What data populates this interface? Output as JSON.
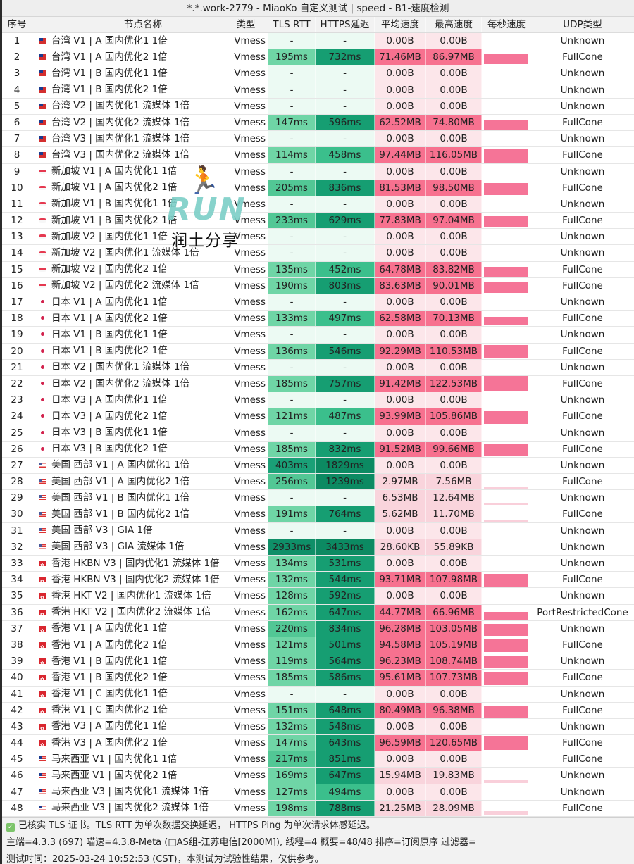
{
  "window": {
    "title": "*.*.work-2779 - MiaoKo 自定义测试 | speed - B1-速度检测"
  },
  "table": {
    "headers": {
      "idx": "序号",
      "name": "节点名称",
      "type": "类型",
      "tls": "TLS RTT",
      "https": "HTTPS延迟",
      "avg": "平均速度",
      "max": "最高速度",
      "persec": "每秒速度",
      "udp": "UDP类型"
    },
    "rows": [
      {
        "idx": "1",
        "flag": "tw",
        "name": "台湾 V1 | A 国内优化1 1倍",
        "type": "Vmess",
        "tls": "-",
        "https": "-",
        "avg": "0.00B",
        "max": "0.00B",
        "udp": "Unknown"
      },
      {
        "idx": "2",
        "flag": "tw",
        "name": "台湾 V1 | A 国内优化2 1倍",
        "type": "Vmess",
        "tls": "195ms",
        "https": "732ms",
        "avg": "71.46MB",
        "max": "86.97MB",
        "udp": "FullCone"
      },
      {
        "idx": "3",
        "flag": "tw",
        "name": "台湾 V1 | B 国内优化1 1倍",
        "type": "Vmess",
        "tls": "-",
        "https": "-",
        "avg": "0.00B",
        "max": "0.00B",
        "udp": "Unknown"
      },
      {
        "idx": "4",
        "flag": "tw",
        "name": "台湾 V1 | B 国内优化2 1倍",
        "type": "Vmess",
        "tls": "-",
        "https": "-",
        "avg": "0.00B",
        "max": "0.00B",
        "udp": "Unknown"
      },
      {
        "idx": "5",
        "flag": "tw",
        "name": "台湾 V2 | 国内优化1 流媒体 1倍",
        "type": "Vmess",
        "tls": "-",
        "https": "-",
        "avg": "0.00B",
        "max": "0.00B",
        "udp": "Unknown"
      },
      {
        "idx": "6",
        "flag": "tw",
        "name": "台湾 V2 | 国内优化2 流媒体 1倍",
        "type": "Vmess",
        "tls": "147ms",
        "https": "596ms",
        "avg": "62.52MB",
        "max": "74.80MB",
        "udp": "FullCone"
      },
      {
        "idx": "7",
        "flag": "tw",
        "name": "台湾 V3 | 国内优化1 流媒体 1倍",
        "type": "Vmess",
        "tls": "-",
        "https": "-",
        "avg": "0.00B",
        "max": "0.00B",
        "udp": "Unknown"
      },
      {
        "idx": "8",
        "flag": "tw",
        "name": "台湾 V3 | 国内优化2 流媒体 1倍",
        "type": "Vmess",
        "tls": "114ms",
        "https": "458ms",
        "avg": "97.44MB",
        "max": "116.05MB",
        "udp": "FullCone"
      },
      {
        "idx": "9",
        "flag": "sg",
        "name": "新加坡 V1 | A 国内优化1 1倍",
        "type": "Vmess",
        "tls": "-",
        "https": "-",
        "avg": "0.00B",
        "max": "0.00B",
        "udp": "Unknown"
      },
      {
        "idx": "10",
        "flag": "sg",
        "name": "新加坡 V1 | A 国内优化2 1倍",
        "type": "Vmess",
        "tls": "205ms",
        "https": "836ms",
        "avg": "81.53MB",
        "max": "98.50MB",
        "udp": "FullCone"
      },
      {
        "idx": "11",
        "flag": "sg",
        "name": "新加坡 V1 | B 国内优化1 1倍",
        "type": "Vmess",
        "tls": "-",
        "https": "-",
        "avg": "0.00B",
        "max": "0.00B",
        "udp": "Unknown"
      },
      {
        "idx": "12",
        "flag": "sg",
        "name": "新加坡 V1 | B 国内优化2 1倍",
        "type": "Vmess",
        "tls": "233ms",
        "https": "629ms",
        "avg": "77.83MB",
        "max": "97.04MB",
        "udp": "FullCone"
      },
      {
        "idx": "13",
        "flag": "sg",
        "name": "新加坡 V2 | 国内优化1 1倍",
        "type": "Vmess",
        "tls": "-",
        "https": "-",
        "avg": "0.00B",
        "max": "0.00B",
        "udp": "Unknown"
      },
      {
        "idx": "14",
        "flag": "sg",
        "name": "新加坡 V2 | 国内优化1 流媒体 1倍",
        "type": "Vmess",
        "tls": "-",
        "https": "-",
        "avg": "0.00B",
        "max": "0.00B",
        "udp": "Unknown"
      },
      {
        "idx": "15",
        "flag": "sg",
        "name": "新加坡 V2 | 国内优化2 1倍",
        "type": "Vmess",
        "tls": "135ms",
        "https": "452ms",
        "avg": "64.78MB",
        "max": "83.82MB",
        "udp": "FullCone"
      },
      {
        "idx": "16",
        "flag": "sg",
        "name": "新加坡 V2 | 国内优化2 流媒体 1倍",
        "type": "Vmess",
        "tls": "190ms",
        "https": "803ms",
        "avg": "83.63MB",
        "max": "90.01MB",
        "udp": "FullCone"
      },
      {
        "idx": "17",
        "flag": "jp",
        "name": "日本 V1 | A 国内优化1 1倍",
        "type": "Vmess",
        "tls": "-",
        "https": "-",
        "avg": "0.00B",
        "max": "0.00B",
        "udp": "Unknown"
      },
      {
        "idx": "18",
        "flag": "jp",
        "name": "日本 V1 | A 国内优化2 1倍",
        "type": "Vmess",
        "tls": "133ms",
        "https": "497ms",
        "avg": "62.58MB",
        "max": "70.13MB",
        "udp": "FullCone"
      },
      {
        "idx": "19",
        "flag": "jp",
        "name": "日本 V1 | B 国内优化1 1倍",
        "type": "Vmess",
        "tls": "-",
        "https": "-",
        "avg": "0.00B",
        "max": "0.00B",
        "udp": "Unknown"
      },
      {
        "idx": "20",
        "flag": "jp",
        "name": "日本 V1 | B 国内优化2 1倍",
        "type": "Vmess",
        "tls": "136ms",
        "https": "546ms",
        "avg": "92.29MB",
        "max": "110.53MB",
        "udp": "FullCone"
      },
      {
        "idx": "21",
        "flag": "jp",
        "name": "日本 V2 | 国内优化1 流媒体 1倍",
        "type": "Vmess",
        "tls": "-",
        "https": "-",
        "avg": "0.00B",
        "max": "0.00B",
        "udp": "Unknown"
      },
      {
        "idx": "22",
        "flag": "jp",
        "name": "日本 V2 | 国内优化2 流媒体 1倍",
        "type": "Vmess",
        "tls": "185ms",
        "https": "757ms",
        "avg": "91.42MB",
        "max": "122.53MB",
        "udp": "FullCone"
      },
      {
        "idx": "23",
        "flag": "jp",
        "name": "日本 V3 | A 国内优化1 1倍",
        "type": "Vmess",
        "tls": "-",
        "https": "-",
        "avg": "0.00B",
        "max": "0.00B",
        "udp": "Unknown"
      },
      {
        "idx": "24",
        "flag": "jp",
        "name": "日本 V3 | A 国内优化2 1倍",
        "type": "Vmess",
        "tls": "121ms",
        "https": "487ms",
        "avg": "93.99MB",
        "max": "105.86MB",
        "udp": "FullCone"
      },
      {
        "idx": "25",
        "flag": "jp",
        "name": "日本 V3 | B 国内优化1 1倍",
        "type": "Vmess",
        "tls": "-",
        "https": "-",
        "avg": "0.00B",
        "max": "0.00B",
        "udp": "Unknown"
      },
      {
        "idx": "26",
        "flag": "jp",
        "name": "日本 V3 | B 国内优化2 1倍",
        "type": "Vmess",
        "tls": "185ms",
        "https": "832ms",
        "avg": "91.52MB",
        "max": "99.66MB",
        "udp": "FullCone"
      },
      {
        "idx": "27",
        "flag": "us",
        "name": "美国 西部 V1 | A 国内优化1 1倍",
        "type": "Vmess",
        "tls": "403ms",
        "https": "1829ms",
        "avg": "0.00B",
        "max": "0.00B",
        "udp": "Unknown"
      },
      {
        "idx": "28",
        "flag": "us",
        "name": "美国 西部 V1 | A 国内优化2 1倍",
        "type": "Vmess",
        "tls": "256ms",
        "https": "1239ms",
        "avg": "2.97MB",
        "max": "7.56MB",
        "udp": "FullCone"
      },
      {
        "idx": "29",
        "flag": "us",
        "name": "美国 西部 V1 | B 国内优化1 1倍",
        "type": "Vmess",
        "tls": "-",
        "https": "-",
        "avg": "6.53MB",
        "max": "12.64MB",
        "udp": "Unknown"
      },
      {
        "idx": "30",
        "flag": "us",
        "name": "美国 西部 V1 | B 国内优化2 1倍",
        "type": "Vmess",
        "tls": "191ms",
        "https": "764ms",
        "avg": "5.62MB",
        "max": "11.70MB",
        "udp": "FullCone"
      },
      {
        "idx": "31",
        "flag": "us",
        "name": "美国 西部 V3 | GIA 1倍",
        "type": "Vmess",
        "tls": "-",
        "https": "-",
        "avg": "0.00B",
        "max": "0.00B",
        "udp": "Unknown"
      },
      {
        "idx": "32",
        "flag": "us",
        "name": "美国 西部 V3 | GIA 流媒体 1倍",
        "type": "Vmess",
        "tls": "2933ms",
        "https": "3433ms",
        "avg": "28.60KB",
        "max": "55.89KB",
        "udp": "Unknown"
      },
      {
        "idx": "33",
        "flag": "hk",
        "name": "香港 HKBN V3 | 国内优化1 流媒体 1倍",
        "type": "Vmess",
        "tls": "134ms",
        "https": "531ms",
        "avg": "0.00B",
        "max": "0.00B",
        "udp": "Unknown"
      },
      {
        "idx": "34",
        "flag": "hk",
        "name": "香港 HKBN V3 | 国内优化2 流媒体 1倍",
        "type": "Vmess",
        "tls": "132ms",
        "https": "544ms",
        "avg": "93.71MB",
        "max": "107.98MB",
        "udp": "FullCone"
      },
      {
        "idx": "35",
        "flag": "hk",
        "name": "香港 HKT V2 | 国内优化1 流媒体 1倍",
        "type": "Vmess",
        "tls": "128ms",
        "https": "592ms",
        "avg": "0.00B",
        "max": "0.00B",
        "udp": "Unknown"
      },
      {
        "idx": "36",
        "flag": "hk",
        "name": "香港 HKT V2 | 国内优化2 流媒体 1倍",
        "type": "Vmess",
        "tls": "162ms",
        "https": "647ms",
        "avg": "44.77MB",
        "max": "66.96MB",
        "udp": "PortRestrictedCone"
      },
      {
        "idx": "37",
        "flag": "hk",
        "name": "香港 V1 | A 国内优化1 1倍",
        "type": "Vmess",
        "tls": "220ms",
        "https": "834ms",
        "avg": "96.28MB",
        "max": "103.05MB",
        "udp": "Unknown"
      },
      {
        "idx": "38",
        "flag": "hk",
        "name": "香港 V1 | A 国内优化2 1倍",
        "type": "Vmess",
        "tls": "121ms",
        "https": "501ms",
        "avg": "94.58MB",
        "max": "105.19MB",
        "udp": "FullCone"
      },
      {
        "idx": "39",
        "flag": "hk",
        "name": "香港 V1 | B 国内优化1 1倍",
        "type": "Vmess",
        "tls": "119ms",
        "https": "564ms",
        "avg": "96.23MB",
        "max": "108.74MB",
        "udp": "Unknown"
      },
      {
        "idx": "40",
        "flag": "hk",
        "name": "香港 V1 | B 国内优化2 1倍",
        "type": "Vmess",
        "tls": "185ms",
        "https": "586ms",
        "avg": "95.61MB",
        "max": "107.73MB",
        "udp": "FullCone"
      },
      {
        "idx": "41",
        "flag": "hk",
        "name": "香港 V1 | C 国内优化1 1倍",
        "type": "Vmess",
        "tls": "-",
        "https": "-",
        "avg": "0.00B",
        "max": "0.00B",
        "udp": "Unknown"
      },
      {
        "idx": "42",
        "flag": "hk",
        "name": "香港 V1 | C 国内优化2 1倍",
        "type": "Vmess",
        "tls": "151ms",
        "https": "648ms",
        "avg": "80.49MB",
        "max": "96.38MB",
        "udp": "FullCone"
      },
      {
        "idx": "43",
        "flag": "hk",
        "name": "香港 V3 | A 国内优化1 1倍",
        "type": "Vmess",
        "tls": "132ms",
        "https": "548ms",
        "avg": "0.00B",
        "max": "0.00B",
        "udp": "Unknown"
      },
      {
        "idx": "44",
        "flag": "hk",
        "name": "香港 V3 | A 国内优化2 1倍",
        "type": "Vmess",
        "tls": "147ms",
        "https": "643ms",
        "avg": "96.59MB",
        "max": "120.65MB",
        "udp": "FullCone"
      },
      {
        "idx": "45",
        "flag": "my",
        "name": "马来西亚 V1 | 国内优化1 1倍",
        "type": "Vmess",
        "tls": "217ms",
        "https": "851ms",
        "avg": "0.00B",
        "max": "0.00B",
        "udp": "FullCone"
      },
      {
        "idx": "46",
        "flag": "my",
        "name": "马来西亚 V1 | 国内优化2 1倍",
        "type": "Vmess",
        "tls": "169ms",
        "https": "647ms",
        "avg": "15.94MB",
        "max": "19.83MB",
        "udp": "Unknown"
      },
      {
        "idx": "47",
        "flag": "my",
        "name": "马来西亚 V3 | 国内优化1 流媒体 1倍",
        "type": "Vmess",
        "tls": "127ms",
        "https": "494ms",
        "avg": "0.00B",
        "max": "0.00B",
        "udp": "Unknown"
      },
      {
        "idx": "48",
        "flag": "my",
        "name": "马来西亚 V3 | 国内优化2 流媒体 1倍",
        "type": "Vmess",
        "tls": "198ms",
        "https": "788ms",
        "avg": "21.25MB",
        "max": "28.09MB",
        "udp": "FullCone"
      }
    ]
  },
  "footer": {
    "line1": "已核实 TLS 证书。TLS RTT 为单次数据交换延迟， HTTPS Ping 为单次请求体感延迟。",
    "line2": "主端=4.3.3 (697) 喵速=4.3.8-Meta (□AS组-江苏电信[2000M]), 线程=4 概要=48/48 排序=订阅原序 过滤器=",
    "line3": "测试时间：2025-03-24 10:52:53 (CST)，本测试为试验性结果，仅供参考。"
  },
  "watermark": {
    "runner_icon": "running-person-icon",
    "text_en": "RUN",
    "text_cn": "润土分享"
  },
  "colors": {
    "tls_fill": "#6fd5a6",
    "https_fill": "#169e72",
    "latency_empty": "#ecfaf3",
    "speed_hi": "#f7718f",
    "speed_low": "#f9d4dc",
    "speed_empty": "#fce6ea",
    "sparkline": "#f57497"
  }
}
